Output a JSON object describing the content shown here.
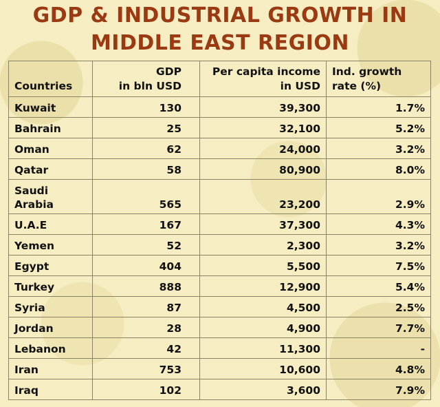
{
  "title_line1": "GDP & INDUSTRIAL GROWTH IN",
  "title_line2": "MIDDLE EAST REGION",
  "headers": {
    "countries": "Countries",
    "gdp_line1": "GDP",
    "gdp_line2": "in bln USD",
    "pci_line1": "Per capita income",
    "pci_line2": "in USD",
    "ind_line1": "Ind. growth",
    "ind_line2": "rate (%)"
  },
  "rows": [
    {
      "country": "Kuwait",
      "gdp": "130",
      "income": "39,300",
      "growth": "1.7%"
    },
    {
      "country": "Bahrain",
      "gdp": "25",
      "income": "32,100",
      "growth": "5.2%"
    },
    {
      "country": "Oman",
      "gdp": "62",
      "income": "24,000",
      "growth": "3.2%"
    },
    {
      "country": "Qatar",
      "gdp": "58",
      "income": "80,900",
      "growth": "8.0%"
    },
    {
      "country_line1": "Saudi",
      "country_line2": "Arabia",
      "gdp": "565",
      "income": "23,200",
      "growth": "2.9%"
    },
    {
      "country": "U.A.E",
      "gdp": "167",
      "income": "37,300",
      "growth": "4.3%"
    },
    {
      "country": "Yemen",
      "gdp": "52",
      "income": "2,300",
      "growth": "3.2%"
    },
    {
      "country": "Egypt",
      "gdp": "404",
      "income": "5,500",
      "growth": "7.5%"
    },
    {
      "country": "Turkey",
      "gdp": "888",
      "income": "12,900",
      "growth": "5.4%"
    },
    {
      "country": "Syria",
      "gdp": "87",
      "income": "4,500",
      "growth": "2.5%"
    },
    {
      "country": "Jordan",
      "gdp": "28",
      "income": "4,900",
      "growth": "7.7%"
    },
    {
      "country": "Lebanon",
      "gdp": "42",
      "income": "11,300",
      "growth": "-"
    },
    {
      "country": "Iran",
      "gdp": "753",
      "income": "10,600",
      "growth": "4.8%"
    },
    {
      "country": "Iraq",
      "gdp": "102",
      "income": "3,600",
      "growth": "7.9%"
    }
  ]
}
